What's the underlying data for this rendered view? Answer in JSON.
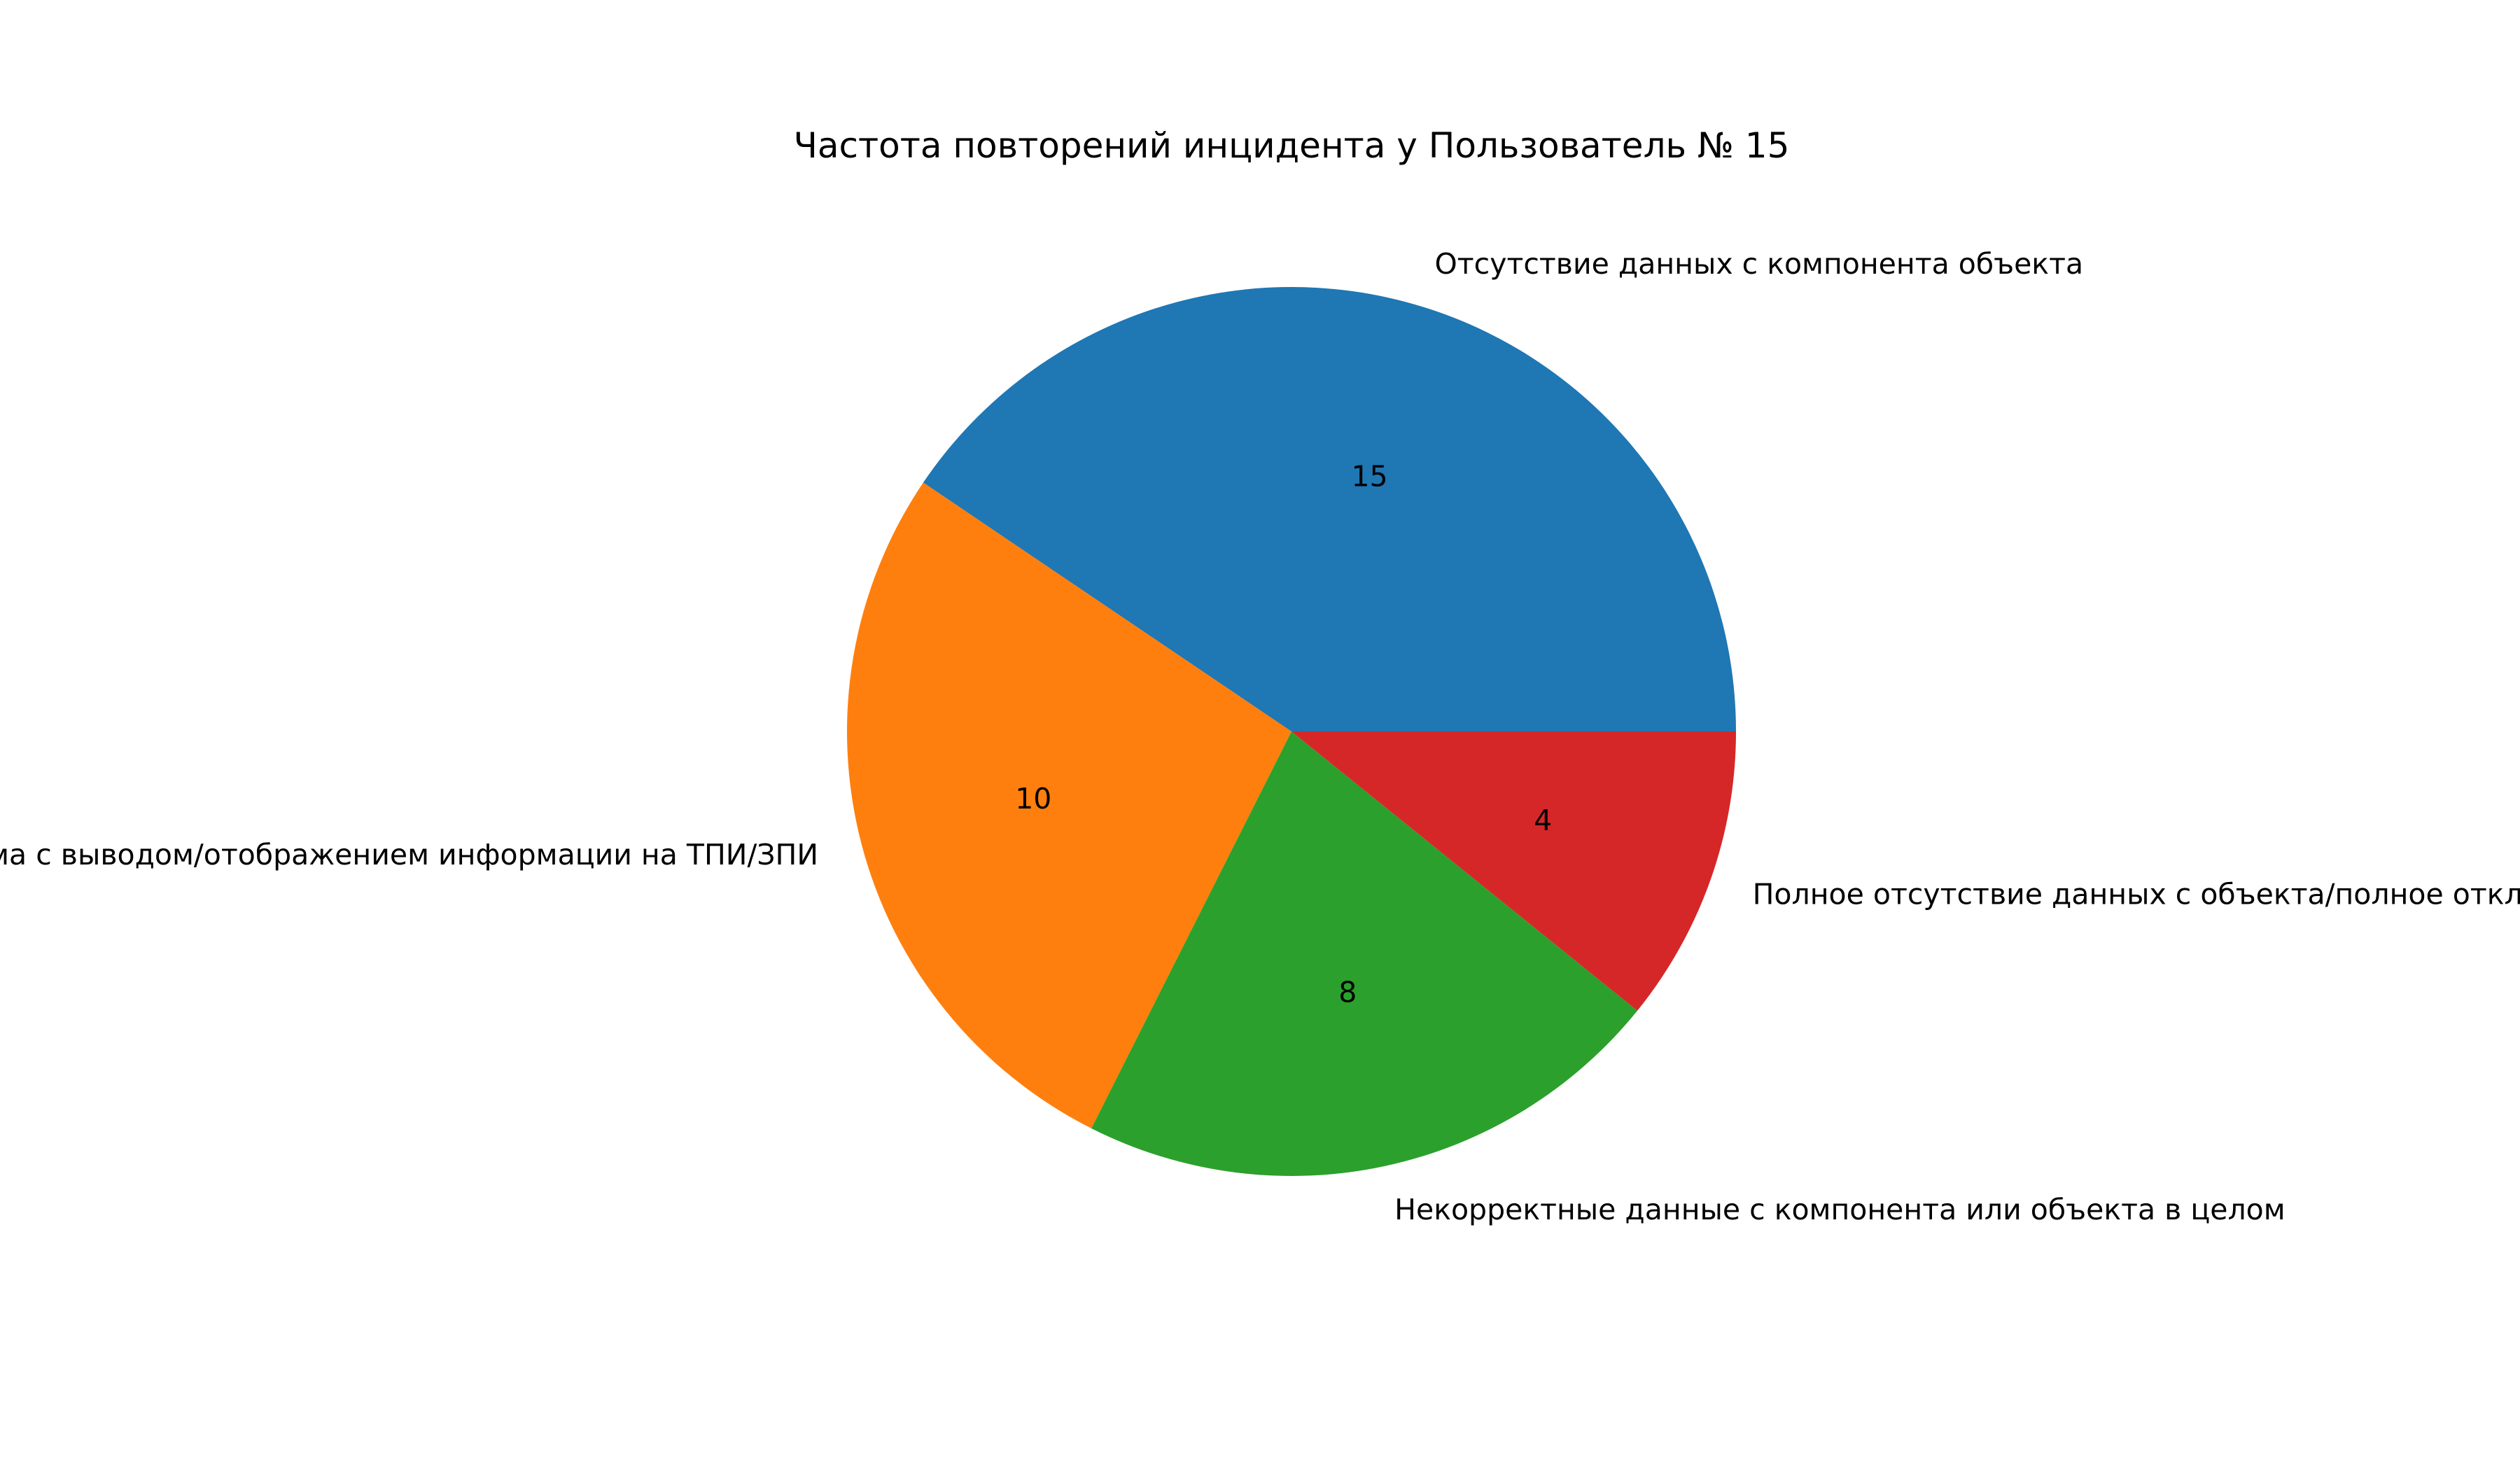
{
  "chart_data": {
    "type": "pie",
    "title": "Частота повторений инцидента у Пользователь № 15",
    "categories": [
      "Отсутствие данных с компонента объекта",
      "Проблема с выводом/отображением информации на ТПИ/ЗПИ",
      "Некорректные данные с компонента или объекта в целом",
      "Полное отсутствие данных с объекта/полное отключение объекта"
    ],
    "values": [
      15,
      10,
      8,
      4
    ],
    "value_labels": [
      "15",
      "10",
      "8",
      "4"
    ],
    "colors": [
      "#1f77b4",
      "#ff7f0e",
      "#2ca02c",
      "#d62728"
    ],
    "start_angle": 0,
    "direction": "counterclockwise",
    "legend": "none"
  }
}
